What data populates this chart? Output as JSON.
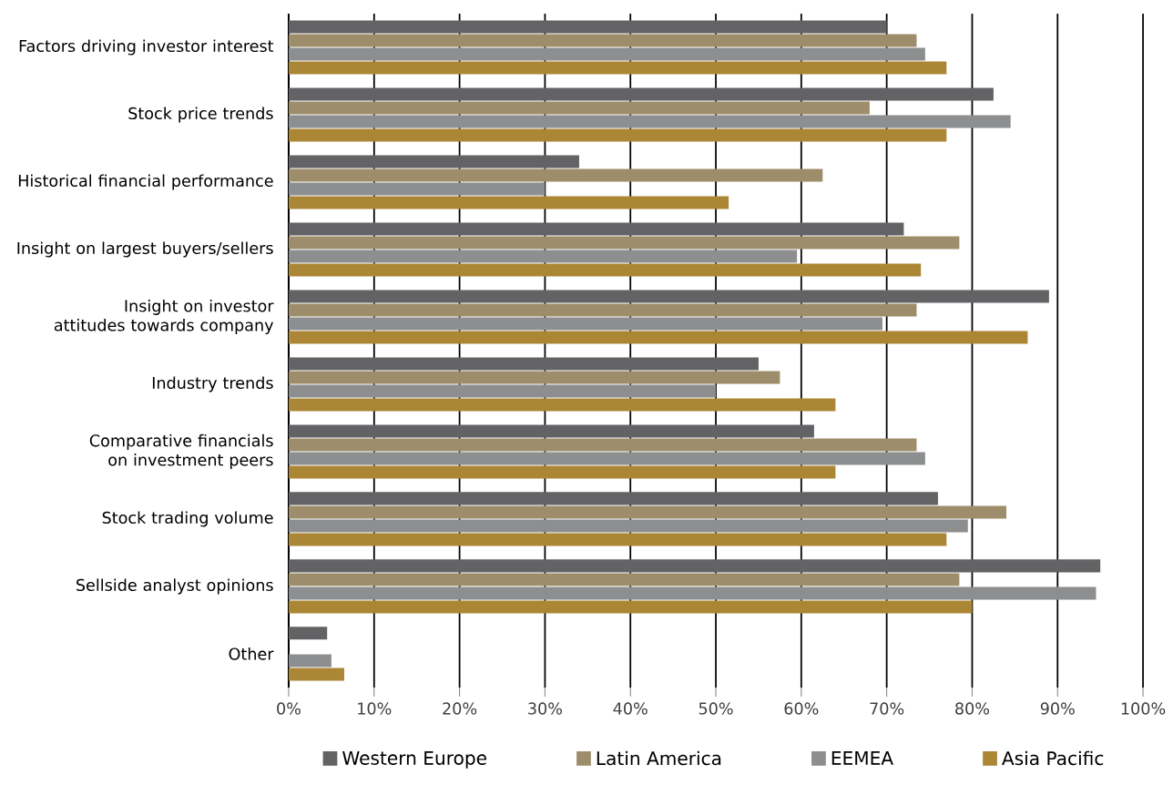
{
  "chart_data": {
    "type": "bar",
    "orientation": "horizontal",
    "categories": [
      "Factors driving investor interest",
      "Stock price trends",
      "Historical financial performance",
      "Insight on largest buyers/sellers",
      "Insight on investor attitudes towards company",
      "Industry trends",
      "Comparative financials on investment peers",
      "Stock trading volume",
      "Sellside analyst opinions",
      "Other"
    ],
    "series": [
      {
        "name": "Western Europe",
        "color": "#636366",
        "values": [
          70,
          82.5,
          34,
          72,
          89,
          55,
          61.5,
          76,
          95,
          4.5
        ]
      },
      {
        "name": "Latin America",
        "color": "#9e8d6a",
        "values": [
          73.5,
          68,
          62.5,
          78.5,
          73.5,
          57.5,
          73.5,
          84,
          78.5,
          null
        ]
      },
      {
        "name": "EEMEA",
        "color": "#8c8e8f",
        "values": [
          74.5,
          84.5,
          30,
          59.5,
          69.5,
          50,
          74.5,
          79.5,
          94.5,
          5
        ]
      },
      {
        "name": "Asia Pacific",
        "color": "#ab8635",
        "values": [
          77,
          77,
          51.5,
          74,
          86.5,
          64,
          64,
          77,
          80,
          6.5
        ]
      }
    ],
    "xlim": [
      0,
      100
    ],
    "xticks": [
      {
        "value": 0,
        "label": "0%"
      },
      {
        "value": 10,
        "label": "10%"
      },
      {
        "value": 20,
        "label": "20%"
      },
      {
        "value": 30,
        "label": "30%"
      },
      {
        "value": 40,
        "label": "40%"
      },
      {
        "value": 50,
        "label": "50%"
      },
      {
        "value": 60,
        "label": "60%"
      },
      {
        "value": 70,
        "label": "70%"
      },
      {
        "value": 80,
        "label": "80%"
      },
      {
        "value": 90,
        "label": "90%"
      },
      {
        "value": 100,
        "label": "100%"
      }
    ],
    "grid": "x",
    "legend": "bottom"
  }
}
